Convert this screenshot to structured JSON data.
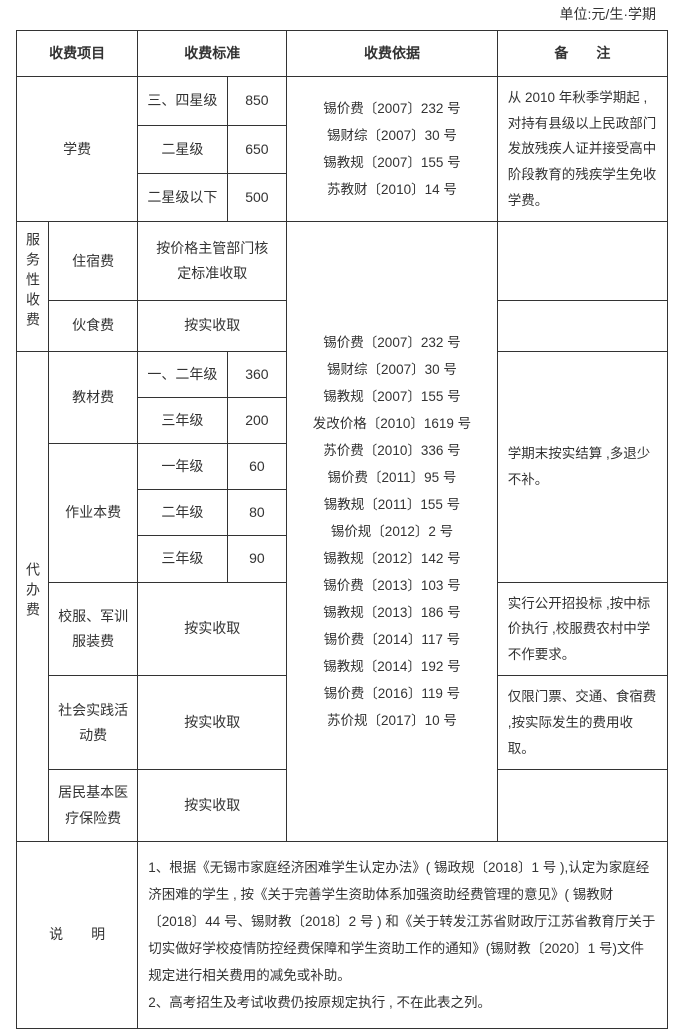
{
  "unit_label": "单位:元/生·学期",
  "headers": {
    "item": "收费项目",
    "standard": "收费标准",
    "basis": "收费依据",
    "note": "备　　注"
  },
  "tuition": {
    "label": "学费",
    "tiers": [
      {
        "name": "三、四星级",
        "amount": "850"
      },
      {
        "name": "二星级",
        "amount": "650"
      },
      {
        "name": "二星级以下",
        "amount": "500"
      }
    ],
    "basis": "锡价费〔2007〕232 号\n锡财综〔2007〕30 号\n锡教规〔2007〕155 号\n苏教财〔2010〕14 号",
    "note": "从 2010 年秋季学期起 ,对持有县级以上民政部门发放残疾人证并接受高中阶段教育的残疾学生免收学费。"
  },
  "service": {
    "group_label": "服务性收费",
    "rows": [
      {
        "label": "住宿费",
        "standard": "按价格主管部门核\n定标准收取",
        "note": ""
      },
      {
        "label": "伙食费",
        "standard": "按实收取",
        "note": ""
      }
    ]
  },
  "agency": {
    "group_label": "代办费",
    "textbook": {
      "label": "教材费",
      "tiers": [
        {
          "name": "一、二年级",
          "amount": "360"
        },
        {
          "name": "三年级",
          "amount": "200"
        }
      ]
    },
    "workbook": {
      "label": "作业本费",
      "tiers": [
        {
          "name": "一年级",
          "amount": "60"
        },
        {
          "name": "二年级",
          "amount": "80"
        },
        {
          "name": "三年级",
          "amount": "90"
        }
      ]
    },
    "period_note": "学期末按实结算 ,多退少不补。",
    "uniform": {
      "label": "校服、军训服装费",
      "standard": "按实收取",
      "note": "实行公开招投标 ,按中标价执行 ,校服费农村中学不作要求。"
    },
    "practice": {
      "label": "社会实践活动费",
      "standard": "按实收取",
      "note": "仅限门票、交通、食宿费 ,按实际发生的费用收取。"
    },
    "insurance": {
      "label": "居民基本医疗保险费",
      "standard": "按实收取",
      "note": ""
    },
    "basis": "锡价费〔2007〕232 号\n锡财综〔2007〕30 号\n锡教规〔2007〕155 号\n发改价格〔2010〕1619 号\n苏价费〔2010〕336 号\n锡价费〔2011〕95 号\n锡教规〔2011〕155 号\n锡价规〔2012〕2 号\n锡教规〔2012〕142 号\n锡价费〔2013〕103 号\n锡教规〔2013〕186 号\n锡价费〔2014〕117 号\n锡教规〔2014〕192 号\n锡价费〔2016〕119 号\n苏价规〔2017〕10 号"
  },
  "explain": {
    "label": "说　　明",
    "text": "1、根据《无锡市家庭经济困难学生认定办法》( 锡政规〔2018〕1 号 ),认定为家庭经济困难的学生 , 按《关于完善学生资助体系加强资助经费管理的意见》( 锡教财〔2018〕44 号、锡财教〔2018〕2 号 ) 和《关于转发江苏省财政厅江苏省教育厅关于切实做好学校疫情防控经费保障和学生资助工作的通知》(锡财教〔2020〕1 号)文件规定进行相关费用的减免或补助。\n2、高考招生及考试收费仍按原规定执行 , 不在此表之列。"
  }
}
